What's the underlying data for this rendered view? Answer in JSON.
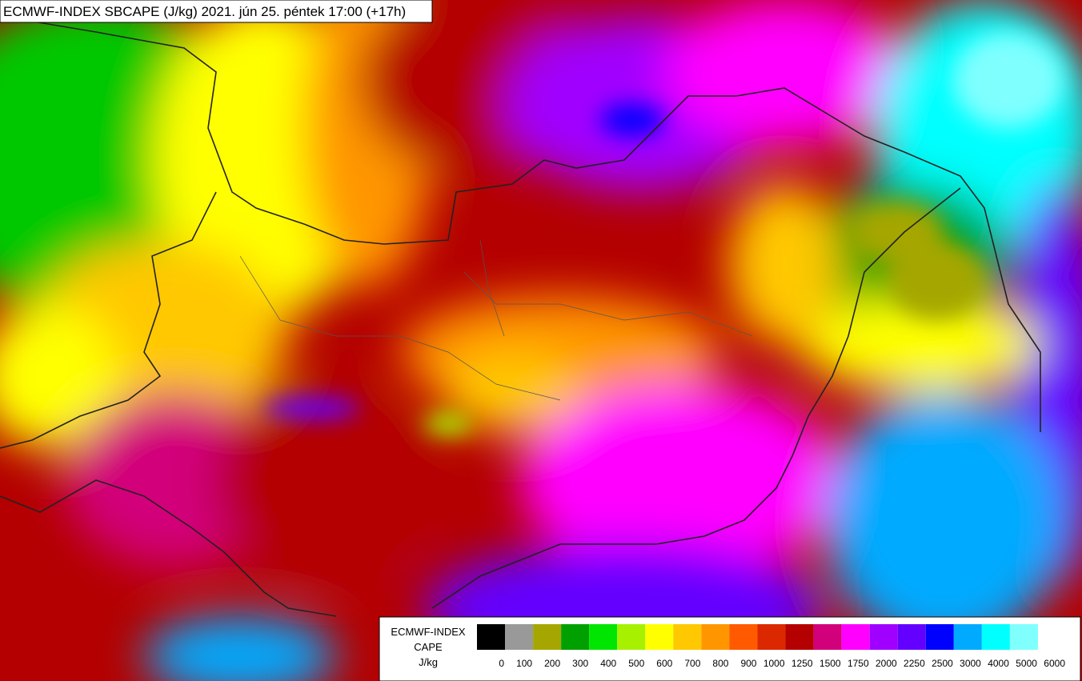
{
  "header": {
    "title": "ECMWF-INDEX SBCAPE (J/kg) 2021. jún 25. péntek 17:00 (+17h)"
  },
  "legend": {
    "title_lines": [
      "ECMWF-INDEX",
      "CAPE",
      "J/kg"
    ],
    "colors": [
      "#000000",
      "#999999",
      "#a6a600",
      "#00a000",
      "#00e600",
      "#a6f000",
      "#ffff00",
      "#ffc800",
      "#ff9600",
      "#ff5a00",
      "#dc2800",
      "#b40000",
      "#d2007a",
      "#ff00ff",
      "#a000ff",
      "#6400ff",
      "#0000ff",
      "#00aaff",
      "#00ffff",
      "#80ffff",
      "#ffffff"
    ],
    "ticks": [
      0,
      100,
      200,
      300,
      400,
      500,
      600,
      700,
      800,
      900,
      1000,
      1250,
      1500,
      1750,
      2000,
      2250,
      2500,
      3000,
      4000,
      5000,
      6000
    ]
  }
}
